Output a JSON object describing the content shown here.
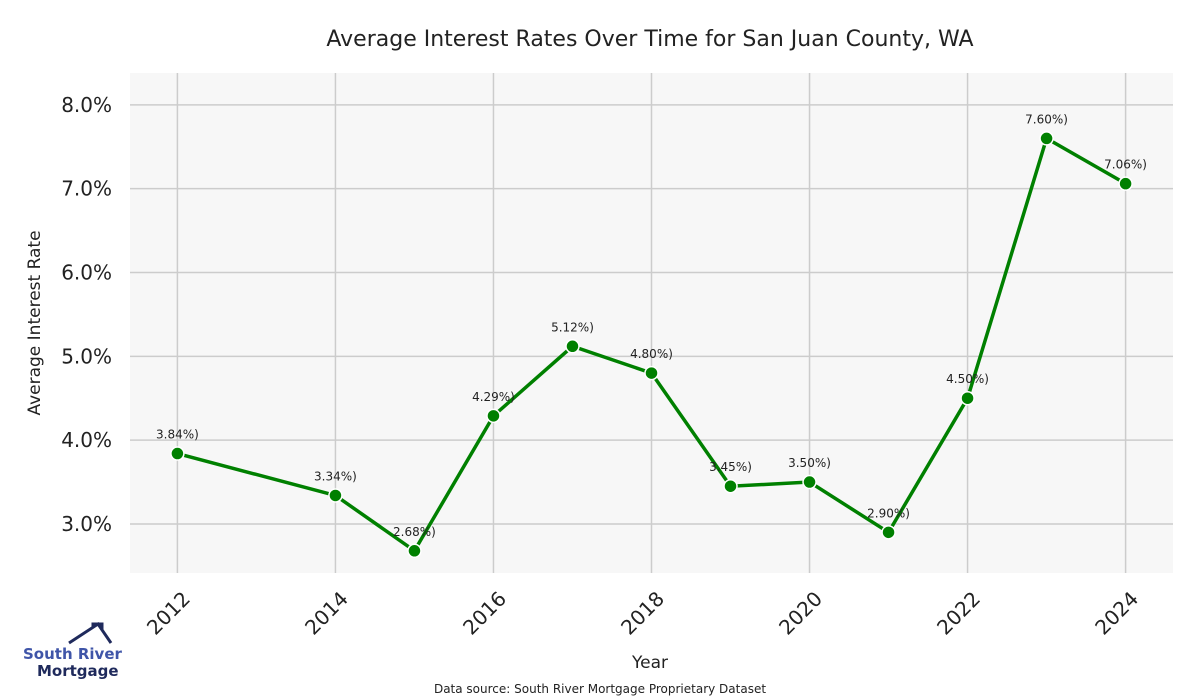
{
  "chart_data": {
    "type": "line",
    "title": "Average Interest Rates Over Time for San Juan County, WA",
    "xlabel": "Year",
    "ylabel": "Average Interest Rate",
    "x": [
      2012,
      2014,
      2015,
      2016,
      2017,
      2018,
      2019,
      2020,
      2021,
      2022,
      2023,
      2024
    ],
    "values": [
      3.84,
      3.34,
      2.68,
      4.29,
      5.12,
      4.8,
      3.45,
      3.5,
      2.9,
      4.5,
      7.6,
      7.06
    ],
    "data_labels": [
      "3.84%)",
      "3.34%)",
      "2.68%)",
      "4.29%)",
      "5.12%)",
      "4.80%)",
      "3.45%)",
      "3.50%)",
      "2.90%)",
      "4.50%)",
      "7.60%)",
      "7.06%)"
    ],
    "xticks": [
      "2012",
      "2014",
      "2016",
      "2018",
      "2020",
      "2022",
      "2024"
    ],
    "yticks": [
      "3.0%",
      "4.0%",
      "5.0%",
      "6.0%",
      "7.0%",
      "8.0%"
    ],
    "ytick_values": [
      3,
      4,
      5,
      6,
      7,
      8
    ],
    "xlim": [
      2011.4,
      2024.6
    ],
    "ylim": [
      2.415,
      8.38
    ],
    "grid": true,
    "line_color": "#008000",
    "plot_bg": "#f7f7f7"
  },
  "source": "Data source: South River Mortgage Proprietary Dataset",
  "logo": {
    "line1": "South River",
    "line2": "Mortgage"
  }
}
